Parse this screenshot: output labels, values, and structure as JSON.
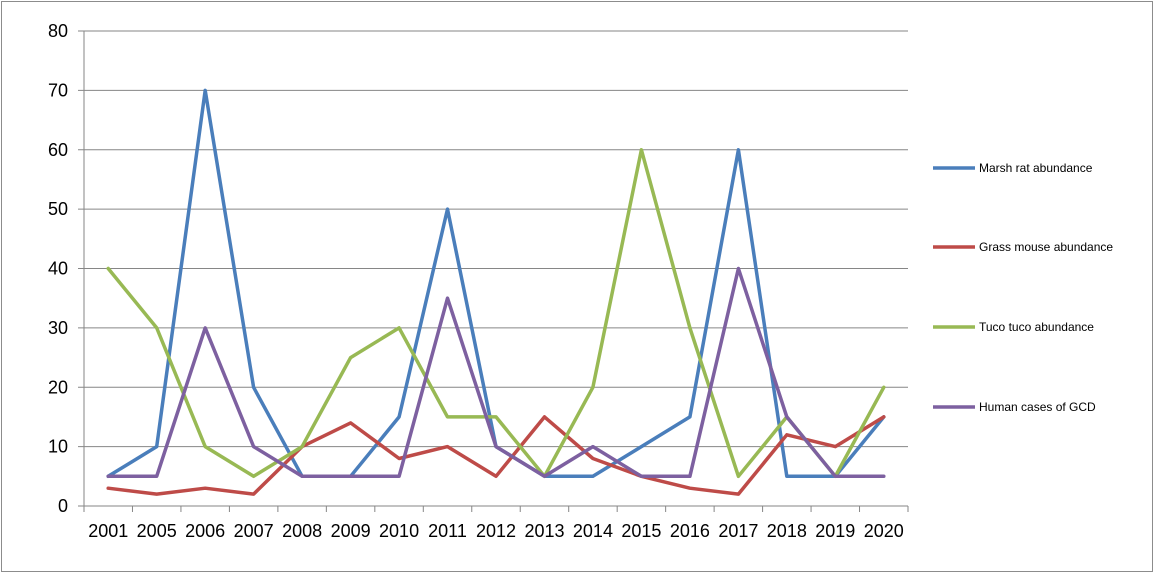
{
  "chart_data": {
    "type": "line",
    "title": "",
    "xlabel": "",
    "ylabel": "",
    "categories": [
      "2001",
      "2005",
      "2006",
      "2007",
      "2008",
      "2009",
      "2010",
      "2011",
      "2012",
      "2013",
      "2014",
      "2015",
      "2016",
      "2017",
      "2018",
      "2019",
      "2020"
    ],
    "ylim": [
      0,
      80
    ],
    "yticks": [
      0,
      10,
      20,
      30,
      40,
      50,
      60,
      70,
      80
    ],
    "grid": true,
    "legend_position": "right",
    "series": [
      {
        "name": "Marsh rat abundance",
        "color": "#4a7ebb",
        "values": [
          5,
          10,
          70,
          20,
          5,
          5,
          15,
          50,
          10,
          5,
          5,
          10,
          15,
          60,
          5,
          5,
          15
        ]
      },
      {
        "name": "Grass mouse abundance",
        "color": "#be4b48",
        "values": [
          3,
          2,
          3,
          2,
          10,
          14,
          8,
          10,
          5,
          15,
          8,
          5,
          3,
          2,
          12,
          10,
          15
        ]
      },
      {
        "name": "Tuco tuco abundance",
        "color": "#98b954",
        "values": [
          40,
          30,
          10,
          5,
          10,
          25,
          30,
          15,
          15,
          5,
          20,
          60,
          30,
          5,
          15,
          5,
          20
        ]
      },
      {
        "name": "Human cases of GCD",
        "color": "#7d60a0",
        "values": [
          5,
          5,
          30,
          10,
          5,
          5,
          5,
          35,
          10,
          5,
          10,
          5,
          5,
          40,
          15,
          5,
          5
        ]
      }
    ]
  }
}
